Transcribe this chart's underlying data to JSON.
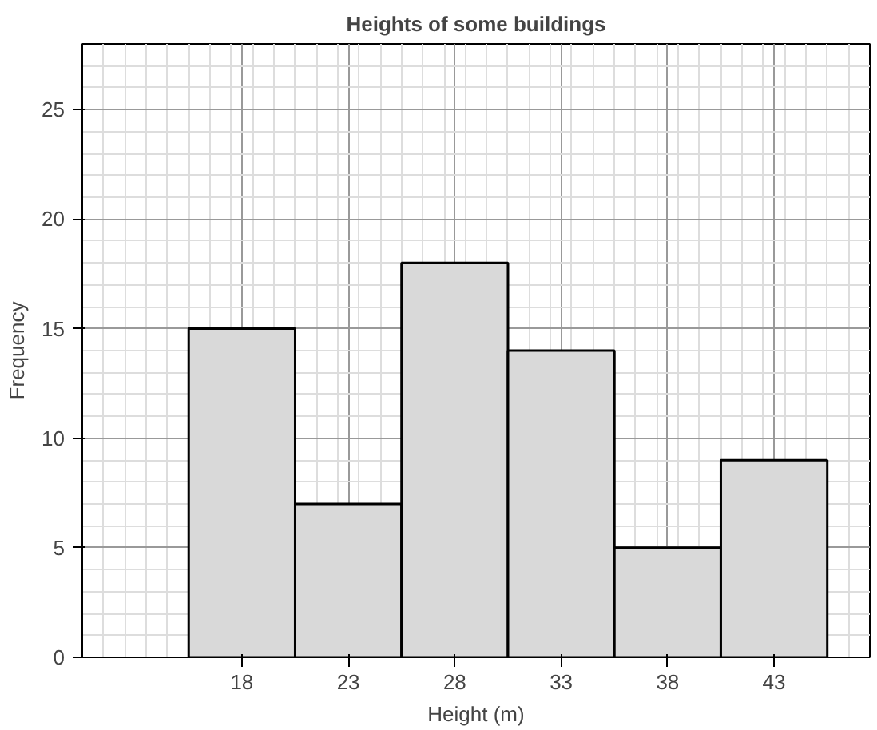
{
  "chart_data": {
    "type": "histogram",
    "title": "Heights of some buildings",
    "xlabel": "Height (m)",
    "ylabel": "Frequency",
    "bins": [
      15.5,
      20.5,
      25.5,
      30.5,
      35.5,
      40.5,
      45.5
    ],
    "values": [
      15,
      7,
      18,
      14,
      5,
      9
    ],
    "color": "#d9d9d9",
    "xlim": [
      10.5,
      47.5
    ],
    "xticks": [
      18,
      23,
      28,
      33,
      38,
      43
    ],
    "ylim": [
      0,
      28
    ],
    "yticks": [
      0,
      5,
      10,
      15,
      20,
      25
    ],
    "grid": true
  }
}
